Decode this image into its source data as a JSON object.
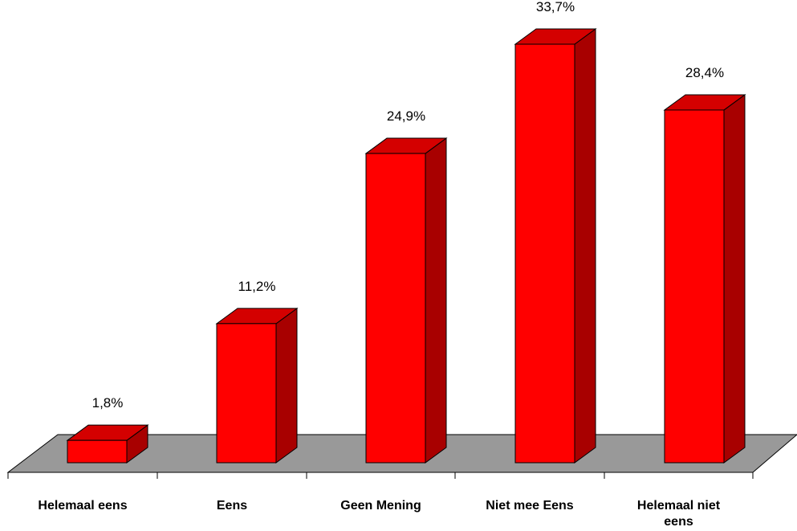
{
  "chart_data": {
    "type": "bar",
    "categories": [
      "Helemaal eens",
      "Eens",
      "Geen Mening",
      "Niet mee Eens",
      "Helemaal niet eens"
    ],
    "category_lines": [
      [
        "Helemaal eens"
      ],
      [
        "Eens"
      ],
      [
        "Geen Mening"
      ],
      [
        "Niet mee Eens"
      ],
      [
        "Helemaal niet",
        "eens"
      ]
    ],
    "values": [
      1.8,
      11.2,
      24.9,
      33.7,
      28.4
    ],
    "data_labels": [
      "1,8%",
      "11,2%",
      "24,9%",
      "33,7%",
      "28,4%"
    ],
    "unit": "%",
    "title": "",
    "xlabel": "",
    "ylabel": "",
    "ylim": [
      0,
      34.8
    ],
    "grid": false,
    "legend": "none",
    "style": "3d",
    "colors": {
      "bar_front": "#ff0000",
      "bar_top": "#d40000",
      "bar_side": "#a80000",
      "floor": "#999999",
      "outline": "#000000"
    }
  }
}
